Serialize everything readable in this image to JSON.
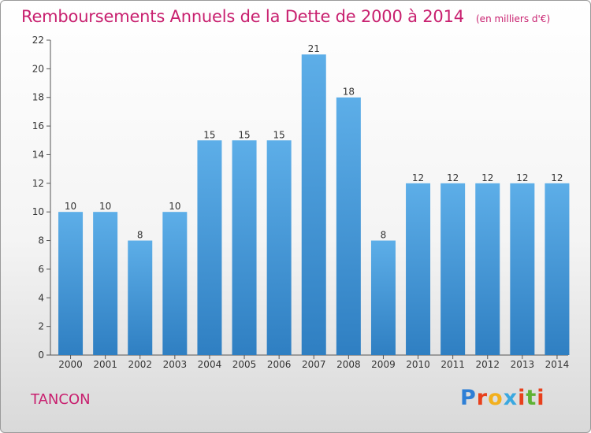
{
  "chart_data": {
    "type": "bar",
    "title": "Remboursements Annuels de la Dette de 2000 à 2014",
    "unit_label": "(en milliers d'€)",
    "categories": [
      "2000",
      "2001",
      "2002",
      "2003",
      "2004",
      "2005",
      "2006",
      "2007",
      "2008",
      "2009",
      "2010",
      "2011",
      "2012",
      "2013",
      "2014"
    ],
    "values": [
      10,
      10,
      8,
      10,
      15,
      15,
      15,
      21,
      18,
      8,
      12,
      12,
      12,
      12,
      12
    ],
    "ylim": [
      0,
      22
    ],
    "yticks": [
      0,
      2,
      4,
      6,
      8,
      10,
      12,
      14,
      16,
      18,
      20,
      22
    ],
    "grid": false,
    "bar_color_top": "#5daee8",
    "bar_color_bottom": "#2f7fc2"
  },
  "commune": "TANCON",
  "logo": {
    "text": "Proxiti",
    "letters": [
      {
        "char": "P",
        "color": "#2e7fd6"
      },
      {
        "char": "r",
        "color": "#e8401c"
      },
      {
        "char": "o",
        "color": "#f2b01e"
      },
      {
        "char": "x",
        "color": "#3aa8e0"
      },
      {
        "char": "i",
        "color": "#e8401c"
      },
      {
        "char": "t",
        "color": "#5fb233"
      },
      {
        "char": "i",
        "color": "#e8401c"
      }
    ]
  }
}
